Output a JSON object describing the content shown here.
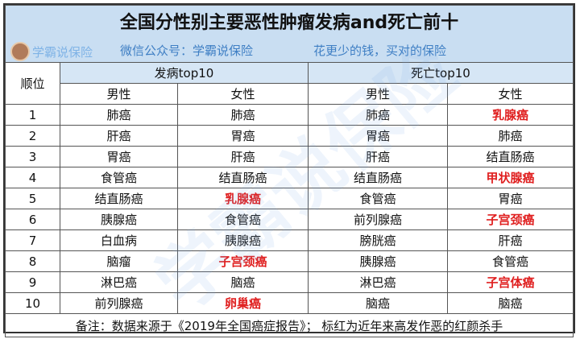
{
  "title": "全国分性别主要恶性肿瘤发病and死亡前十",
  "brand": "学霸说保险",
  "wechat": "微信公众号：学霸说保险",
  "slogan": "花更少的钱，买对的保险",
  "headers": {
    "rank": "顺位",
    "incidence": "发病top10",
    "death": "死亡top10",
    "male": "男性",
    "female": "女性"
  },
  "highlight_color": "#e02020",
  "rows": [
    {
      "rank": "1",
      "inc_m": "肺癌",
      "inc_f": "肺癌",
      "dea_m": "肺癌",
      "dea_f": "乳腺癌",
      "red": [
        "dea_f"
      ]
    },
    {
      "rank": "2",
      "inc_m": "肝癌",
      "inc_f": "胃癌",
      "dea_m": "胃癌",
      "dea_f": "肺癌",
      "red": []
    },
    {
      "rank": "3",
      "inc_m": "胃癌",
      "inc_f": "肝癌",
      "dea_m": "肝癌",
      "dea_f": "结直肠癌",
      "red": []
    },
    {
      "rank": "4",
      "inc_m": "食管癌",
      "inc_f": "结直肠癌",
      "dea_m": "结直肠癌",
      "dea_f": "甲状腺癌",
      "red": [
        "dea_f"
      ]
    },
    {
      "rank": "5",
      "inc_m": "结直肠癌",
      "inc_f": "乳腺癌",
      "dea_m": "食管癌",
      "dea_f": "胃癌",
      "red": [
        "inc_f"
      ]
    },
    {
      "rank": "6",
      "inc_m": "胰腺癌",
      "inc_f": "食管癌",
      "dea_m": "前列腺癌",
      "dea_f": "子宫颈癌",
      "red": [
        "dea_f"
      ]
    },
    {
      "rank": "7",
      "inc_m": "白血病",
      "inc_f": "胰腺癌",
      "dea_m": "膀胱癌",
      "dea_f": "肝癌",
      "red": []
    },
    {
      "rank": "8",
      "inc_m": "脑瘤",
      "inc_f": "子宫颈癌",
      "dea_m": "胰腺癌",
      "dea_f": "食管癌",
      "red": [
        "inc_f"
      ]
    },
    {
      "rank": "9",
      "inc_m": "淋巴癌",
      "inc_f": "脑癌",
      "dea_m": "淋巴癌",
      "dea_f": "子宫体癌",
      "red": [
        "dea_f"
      ]
    },
    {
      "rank": "10",
      "inc_m": "前列腺癌",
      "inc_f": "卵巢癌",
      "dea_m": "脑癌",
      "dea_f": "脑癌",
      "red": [
        "inc_f"
      ]
    }
  ],
  "footnote": "备注：数据来源于《2019年全国癌症报告》； 标红为近年来高发作恶的红颜杀手"
}
